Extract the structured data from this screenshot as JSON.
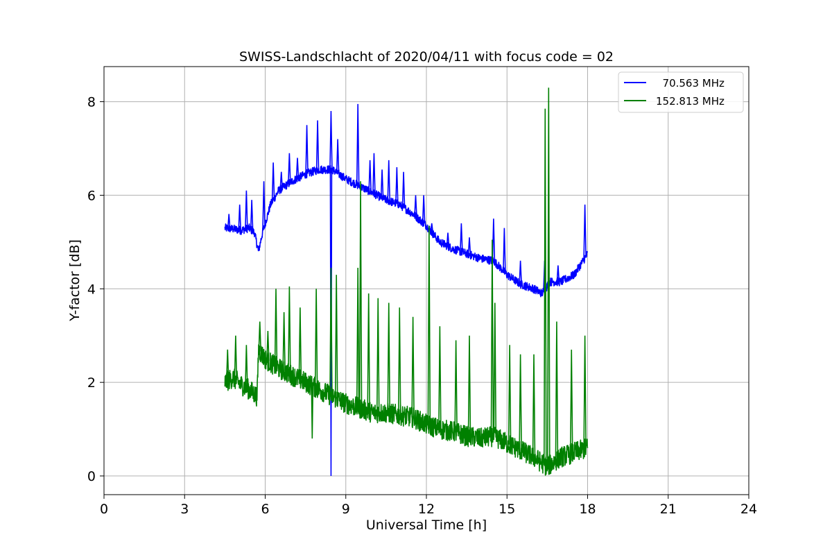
{
  "chart_data": {
    "type": "line",
    "title": "SWISS-Landschlacht of 2020/04/11 with focus code = 02",
    "xlabel": "Universal Time [h]",
    "ylabel": "Y-factor [dB]",
    "xlim": [
      0,
      24
    ],
    "ylim": [
      -0.4,
      8.75
    ],
    "xticks": [
      0,
      3,
      6,
      9,
      12,
      15,
      18,
      21,
      24
    ],
    "yticks": [
      0,
      2,
      4,
      6,
      8
    ],
    "grid": true,
    "legend": "top-right",
    "series": [
      {
        "name": "  70.563 MHz",
        "color": "#0000ff",
        "x": [
          4.5,
          4.8,
          5.1,
          5.4,
          5.6,
          5.75,
          5.9,
          6.2,
          6.5,
          7.0,
          7.5,
          8.0,
          8.5,
          9.0,
          9.5,
          10.0,
          10.5,
          11.0,
          11.5,
          12.0,
          12.5,
          13.0,
          13.5,
          14.0,
          14.5,
          15.0,
          15.5,
          16.0,
          16.3,
          16.6,
          17.0,
          17.5,
          18.0
        ],
        "y": [
          5.3,
          5.28,
          5.25,
          5.3,
          5.2,
          4.8,
          5.2,
          5.8,
          6.1,
          6.3,
          6.45,
          6.55,
          6.55,
          6.35,
          6.2,
          6.05,
          5.9,
          5.8,
          5.6,
          5.35,
          5.0,
          4.85,
          4.75,
          4.65,
          4.6,
          4.3,
          4.1,
          4.0,
          3.9,
          4.15,
          4.15,
          4.3,
          4.75
        ],
        "spikes": [
          [
            4.65,
            5.6
          ],
          [
            5.05,
            5.8
          ],
          [
            5.3,
            6.1
          ],
          [
            5.5,
            5.9
          ],
          [
            5.95,
            6.3
          ],
          [
            6.3,
            6.7
          ],
          [
            6.6,
            6.5
          ],
          [
            6.9,
            6.9
          ],
          [
            7.2,
            6.8
          ],
          [
            7.55,
            7.5
          ],
          [
            7.95,
            7.6
          ],
          [
            8.45,
            7.8
          ],
          [
            8.7,
            7.2
          ],
          [
            9.45,
            7.95
          ],
          [
            9.9,
            6.75
          ],
          [
            10.05,
            6.9
          ],
          [
            10.35,
            6.55
          ],
          [
            10.6,
            6.75
          ],
          [
            10.9,
            6.6
          ],
          [
            11.15,
            6.5
          ],
          [
            11.6,
            6.0
          ],
          [
            11.9,
            6.0
          ],
          [
            12.2,
            5.4
          ],
          [
            12.8,
            5.2
          ],
          [
            13.3,
            5.4
          ],
          [
            13.6,
            5.1
          ],
          [
            14.5,
            5.5
          ],
          [
            14.9,
            5.3
          ],
          [
            15.5,
            4.6
          ],
          [
            16.4,
            4.6
          ],
          [
            16.9,
            4.5
          ],
          [
            17.9,
            5.8
          ]
        ],
        "dips": [
          [
            8.45,
            0.0
          ]
        ]
      },
      {
        "name": "152.813 MHz",
        "color": "#008000",
        "x": [
          4.5,
          4.8,
          5.1,
          5.4,
          5.7,
          5.75,
          6.0,
          6.5,
          7.0,
          7.5,
          8.0,
          8.5,
          9.0,
          9.5,
          10.0,
          10.5,
          11.0,
          11.5,
          12.0,
          12.5,
          13.0,
          13.5,
          14.0,
          14.5,
          15.0,
          15.5,
          16.0,
          16.5,
          17.0,
          17.5,
          18.0
        ],
        "y": [
          2.0,
          2.1,
          1.95,
          1.85,
          1.7,
          2.7,
          2.5,
          2.3,
          2.15,
          2.0,
          1.85,
          1.7,
          1.55,
          1.45,
          1.35,
          1.35,
          1.3,
          1.25,
          1.1,
          1.0,
          0.95,
          0.85,
          0.8,
          0.85,
          0.7,
          0.55,
          0.4,
          0.2,
          0.4,
          0.5,
          0.6
        ],
        "spikes": [
          [
            4.6,
            2.7
          ],
          [
            4.9,
            3.0
          ],
          [
            5.3,
            2.8
          ],
          [
            5.8,
            3.3
          ],
          [
            6.1,
            3.1
          ],
          [
            6.4,
            4.0
          ],
          [
            6.7,
            3.5
          ],
          [
            6.9,
            4.05
          ],
          [
            7.3,
            3.6
          ],
          [
            7.9,
            4.0
          ],
          [
            8.45,
            4.45
          ],
          [
            8.65,
            4.3
          ],
          [
            9.45,
            4.45
          ],
          [
            9.55,
            6.3
          ],
          [
            9.85,
            3.9
          ],
          [
            10.2,
            3.8
          ],
          [
            10.6,
            3.7
          ],
          [
            11.0,
            3.6
          ],
          [
            11.5,
            3.4
          ],
          [
            12.1,
            5.35
          ],
          [
            12.5,
            3.2
          ],
          [
            13.1,
            2.9
          ],
          [
            13.6,
            3.0
          ],
          [
            14.45,
            5.05
          ],
          [
            14.55,
            3.7
          ],
          [
            15.1,
            2.8
          ],
          [
            15.5,
            2.6
          ],
          [
            16.0,
            2.6
          ],
          [
            16.42,
            7.85
          ],
          [
            16.55,
            8.3
          ],
          [
            16.85,
            3.3
          ],
          [
            17.4,
            2.7
          ],
          [
            17.9,
            3.0
          ]
        ],
        "dips": [
          [
            7.75,
            0.8
          ]
        ]
      }
    ]
  }
}
